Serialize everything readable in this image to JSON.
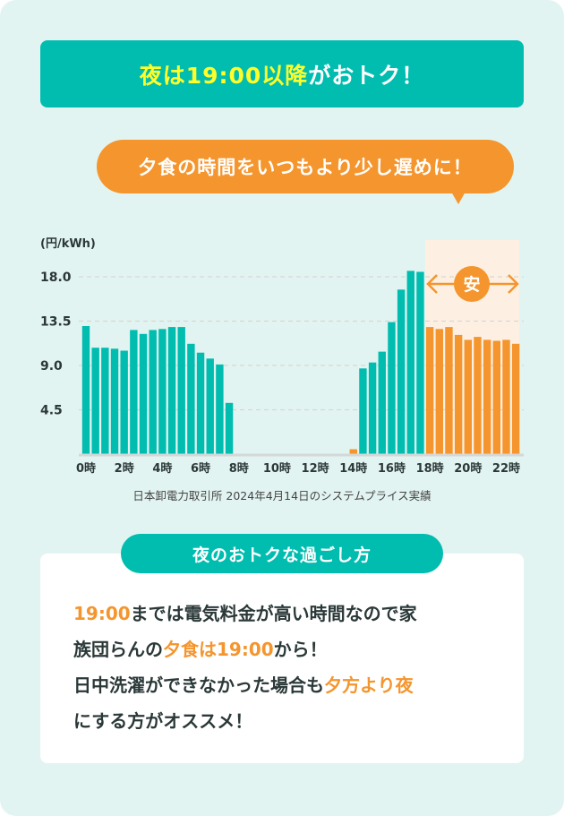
{
  "headline": {
    "highlight": "夜は19:00以降",
    "rest": "がおトク！"
  },
  "bubble": {
    "text": "夕食の時間をいつもより少し遅めに！"
  },
  "colors": {
    "teal": "#00bdb0",
    "orange": "#f5952d",
    "yellow": "#ffff2a",
    "highlight_bg": "#fdf0e3",
    "background": "#e2f4f1"
  },
  "chart_data": {
    "type": "bar",
    "ylabel": "(円/kWh)",
    "ylim": [
      0,
      19.5
    ],
    "yticks": [
      "4.5",
      "9.0",
      "13.5",
      "18.0"
    ],
    "ytick_values": [
      4.5,
      9.0,
      13.5,
      18.0
    ],
    "xtick_labels": [
      "0時",
      "2時",
      "4時",
      "6時",
      "8時",
      "10時",
      "12時",
      "14時",
      "16時",
      "18時",
      "20時",
      "22時"
    ],
    "grid": "horizontal dashed",
    "interval": "30 minutes",
    "values": [
      13.0,
      10.8,
      10.8,
      10.7,
      10.5,
      12.6,
      12.2,
      12.6,
      12.7,
      12.9,
      12.9,
      11.2,
      10.3,
      9.7,
      9.1,
      5.2,
      0,
      0,
      0,
      0,
      0,
      0,
      0,
      0,
      0,
      0,
      0,
      0,
      0.5,
      8.7,
      9.3,
      10.4,
      13.4,
      16.7,
      18.6,
      18.5,
      12.9,
      12.7,
      12.9,
      12.1,
      11.6,
      11.9,
      11.6,
      11.5,
      11.6,
      11.2
    ],
    "bar_colors": [
      "teal",
      "teal",
      "teal",
      "teal",
      "teal",
      "teal",
      "teal",
      "teal",
      "teal",
      "teal",
      "teal",
      "teal",
      "teal",
      "teal",
      "teal",
      "teal",
      "teal",
      "teal",
      "teal",
      "teal",
      "teal",
      "teal",
      "teal",
      "teal",
      "teal",
      "teal",
      "teal",
      "teal",
      "orange",
      "teal",
      "teal",
      "teal",
      "teal",
      "teal",
      "teal",
      "teal",
      "orange",
      "orange",
      "orange",
      "orange",
      "orange",
      "orange",
      "orange",
      "orange",
      "orange",
      "orange"
    ],
    "annotation": "安",
    "highlight_range": [
      "18時",
      "23時"
    ]
  },
  "source": "日本卸電力取引所 2024年4月14日のシステムプライス実績",
  "tips": {
    "title": "夜のおトクな過ごし方",
    "lines": [
      [
        {
          "t": "19:00",
          "o": true
        },
        {
          "t": "までは電気料金が高い時間なので家",
          "o": false
        }
      ],
      [
        {
          "t": "族団らんの",
          "o": false
        },
        {
          "t": "夕食は19:00",
          "o": true
        },
        {
          "t": "から！",
          "o": false
        }
      ],
      [
        {
          "t": "日中洗濯ができなかった場合も",
          "o": false
        },
        {
          "t": "夕方より夜",
          "o": true
        }
      ],
      [
        {
          "t": "にする方がオススメ！",
          "o": false
        }
      ]
    ]
  }
}
